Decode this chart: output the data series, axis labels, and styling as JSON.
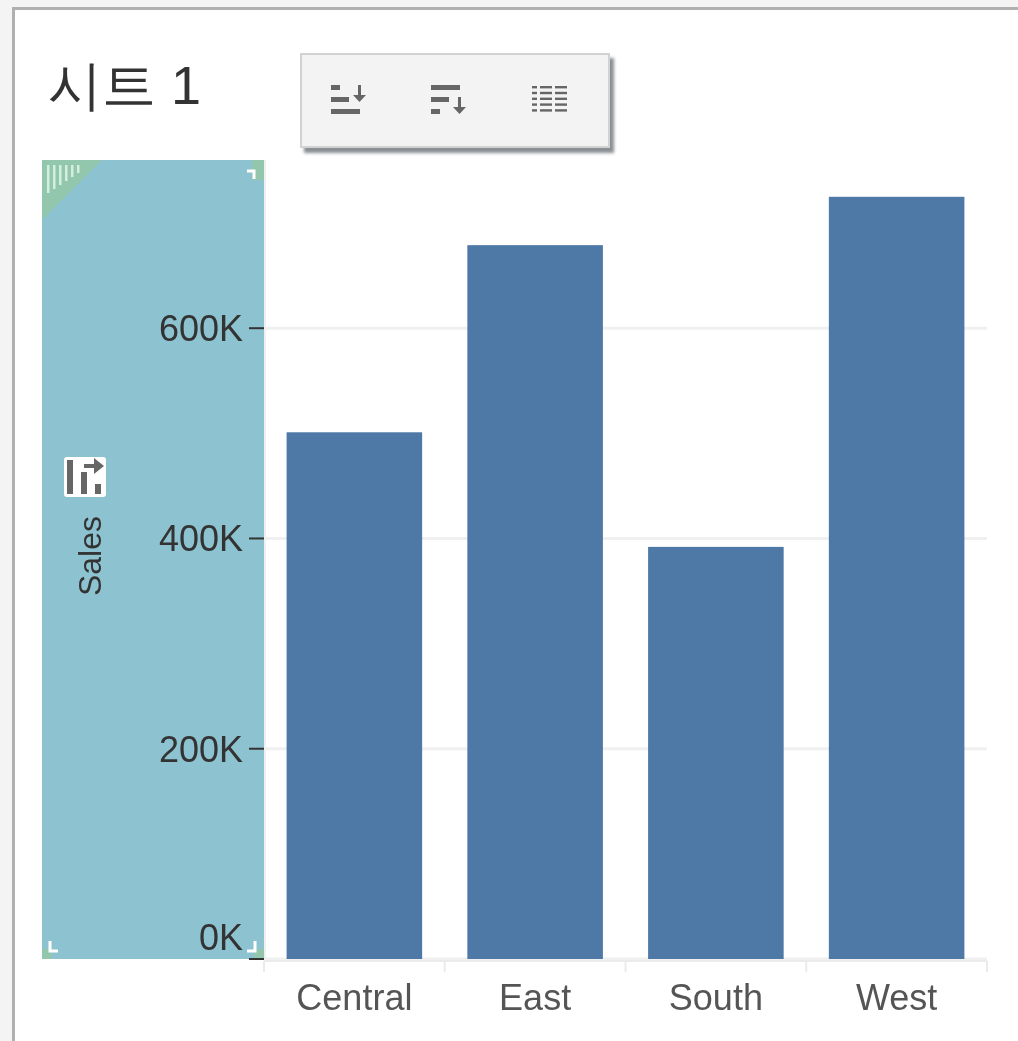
{
  "chart_data": {
    "type": "bar",
    "title": "시트 1",
    "ylabel": "Sales",
    "categories": [
      "Central",
      "East",
      "South",
      "West"
    ],
    "values": [
      501000,
      679000,
      392000,
      725000
    ],
    "color": "#4e79a7",
    "ylim": [
      0,
      760000
    ],
    "yticks": [
      {
        "value": 0,
        "label": "0K"
      },
      {
        "value": 200000,
        "label": "200K"
      },
      {
        "value": 400000,
        "label": "400K"
      },
      {
        "value": 600000,
        "label": "600K"
      }
    ],
    "grid": "y"
  }
}
